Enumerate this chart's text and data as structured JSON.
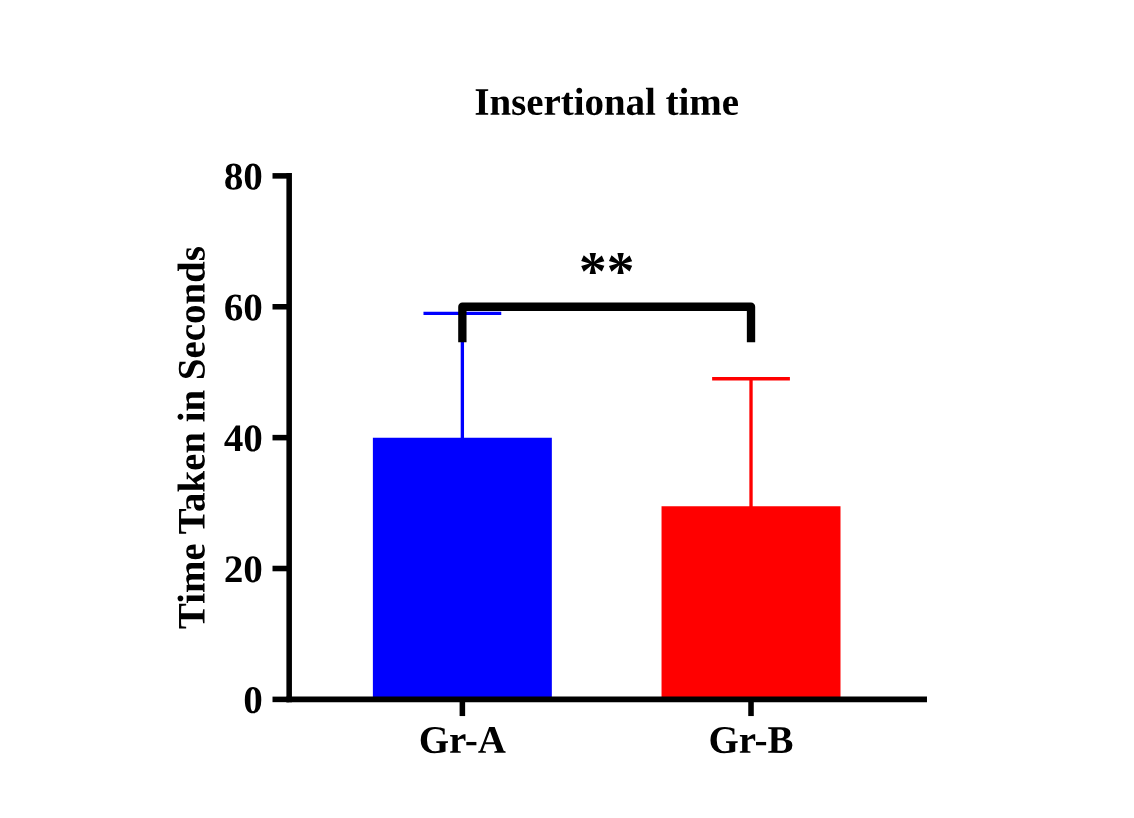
{
  "chart_data": {
    "type": "bar",
    "title": "Insertional time",
    "ylabel": "Time Taken in Seconds",
    "categories": [
      "Gr-A",
      "Gr-B"
    ],
    "values": [
      40,
      29.5
    ],
    "colors": [
      "#0000ff",
      "#ff0000"
    ],
    "errors": [
      19,
      19.5
    ],
    "ylim": [
      0,
      80
    ],
    "yticks": [
      0,
      20,
      40,
      60,
      80
    ],
    "annotations": [
      "**"
    ],
    "grid": false,
    "legend": false
  }
}
